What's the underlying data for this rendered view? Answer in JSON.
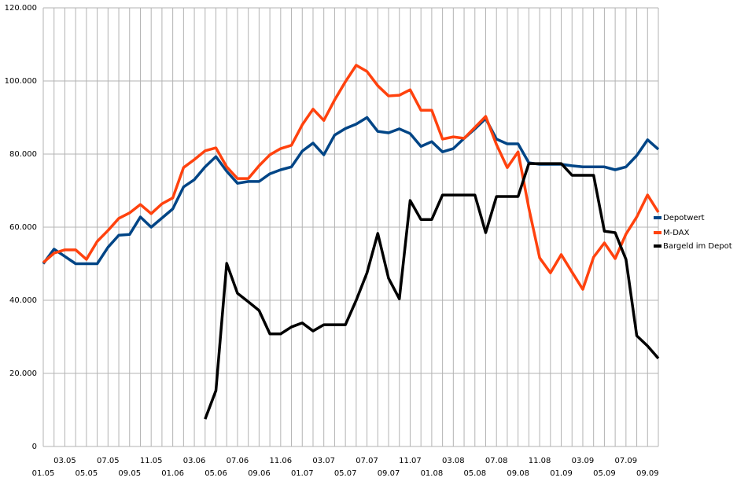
{
  "chart_data": {
    "type": "line",
    "categories": [
      "01.05",
      null,
      "03.05",
      null,
      "05.05",
      null,
      "07.05",
      null,
      "09.05",
      null,
      "11.05",
      null,
      "01.06",
      null,
      "03.06",
      null,
      "05.06",
      null,
      "07.06",
      null,
      "09.06",
      null,
      "11.06",
      null,
      "01.07",
      null,
      "03.07",
      null,
      "05.07",
      null,
      "07.07",
      null,
      "09.07",
      null,
      "11.07",
      null,
      "01.08",
      null,
      "03.08",
      null,
      "05.08",
      null,
      "07.08",
      null,
      "09.08",
      null,
      "11.08",
      null,
      "01.09",
      null,
      "03.09",
      null,
      "05.09",
      null,
      "07.09",
      null,
      "09.09",
      null
    ],
    "ylim": [
      0,
      120000
    ],
    "yticks": [
      0,
      {
        "value": 20000,
        "label": "20.000"
      },
      {
        "value": 40000,
        "label": "40.000"
      },
      {
        "value": 60000,
        "label": "60.000"
      },
      {
        "value": 80000,
        "label": "80.000"
      },
      {
        "value": 100000,
        "label": "100.000"
      },
      {
        "value": 120000,
        "label": "120.000"
      }
    ],
    "grid": true,
    "legend": "right",
    "series": [
      {
        "name": "Depotwert",
        "color": "#004586",
        "values": [
          50000,
          54000,
          52000,
          50000,
          50000,
          50000,
          54500,
          57800,
          58000,
          62800,
          60000,
          62500,
          65000,
          71000,
          73000,
          76500,
          79300,
          75300,
          72000,
          72500,
          72500,
          74600,
          75700,
          76500,
          80800,
          83000,
          79800,
          85200,
          87000,
          88200,
          90000,
          86200,
          85800,
          86900,
          85600,
          82100,
          83400,
          80600,
          81500,
          84300,
          86900,
          89700,
          84100,
          82800,
          82800,
          77600,
          77200,
          77200,
          77200,
          76800,
          76500,
          76500,
          76500,
          75700,
          76500,
          79600,
          83900,
          81300
        ]
      },
      {
        "name": "M-DAX",
        "color": "#ff420e",
        "values": [
          50300,
          52900,
          53800,
          53800,
          51200,
          56100,
          59100,
          62400,
          63900,
          66200,
          63700,
          66400,
          68000,
          76300,
          78500,
          80900,
          81700,
          76500,
          73300,
          73300,
          76800,
          79800,
          81500,
          82400,
          88000,
          92300,
          89200,
          94800,
          99800,
          104300,
          102600,
          98700,
          95900,
          96100,
          97600,
          92000,
          92000,
          84100,
          84700,
          84300,
          87300,
          90300,
          82600,
          76300,
          80600,
          65200,
          51600,
          47500,
          52500,
          47700,
          43000,
          51800,
          55700,
          51400,
          58100,
          62800,
          68800,
          64100
        ]
      },
      {
        "name": "Bargeld im Depot",
        "color": "#000000",
        "values": [
          null,
          null,
          null,
          null,
          null,
          null,
          null,
          null,
          null,
          null,
          null,
          null,
          null,
          null,
          null,
          7500,
          15300,
          50100,
          41900,
          39600,
          37200,
          30800,
          30800,
          32700,
          33800,
          31600,
          33300,
          33300,
          33300,
          40000,
          47500,
          58300,
          46000,
          40400,
          67300,
          62100,
          62100,
          68800,
          68800,
          68800,
          68800,
          58500,
          68400,
          68400,
          68400,
          77400,
          77400,
          77400,
          77400,
          74200,
          74200,
          74200,
          58900,
          58500,
          51200,
          30300,
          27500,
          24100
        ]
      }
    ]
  }
}
